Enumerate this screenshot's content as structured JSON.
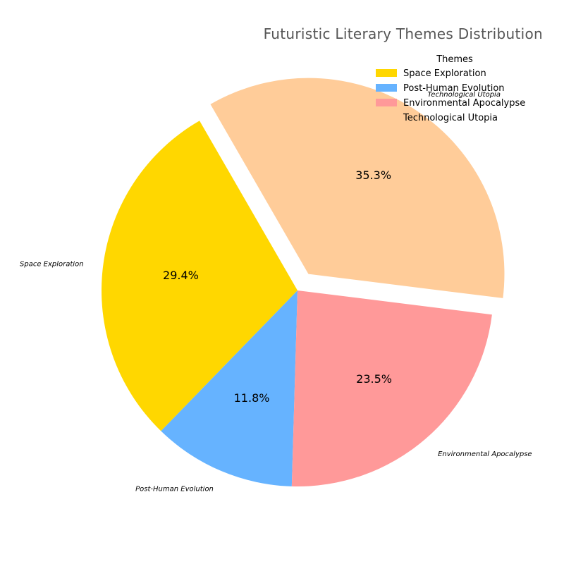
{
  "chart_data": {
    "type": "pie",
    "title": "Futuristic Literary Themes Distribution",
    "categories": [
      "Space Exploration",
      "Post-Human Evolution",
      "Environmental Apocalypse",
      "Technological Utopia"
    ],
    "values": [
      29.4,
      11.8,
      23.5,
      35.3
    ],
    "percent_labels": [
      "29.4%",
      "11.8%",
      "23.5%",
      "35.3%"
    ],
    "colors": [
      "#FFD700",
      "#66B3FF",
      "#FF9999",
      "#FFCC99"
    ],
    "exploded": [
      false,
      false,
      false,
      true
    ],
    "legend": {
      "title": "Themes",
      "placement": "top-right",
      "entries": [
        "Space Exploration",
        "Post-Human Evolution",
        "Environmental Apocalypse",
        "Technological Utopia"
      ]
    }
  }
}
